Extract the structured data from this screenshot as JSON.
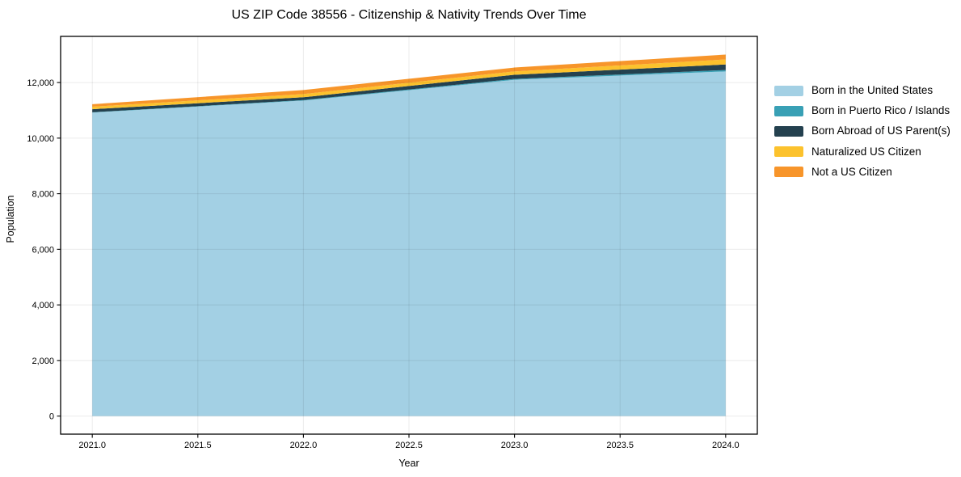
{
  "chart_data": {
    "type": "area",
    "stacked": true,
    "title": "US ZIP Code 38556 - Citizenship & Nativity Trends Over Time",
    "xlabel": "Year",
    "ylabel": "Population",
    "x": [
      2021,
      2022,
      2023,
      2024
    ],
    "series": [
      {
        "name": "Born in the United States",
        "color": "#a3d0e4",
        "values": [
          10920,
          11350,
          12100,
          12400
        ]
      },
      {
        "name": "Born in Puerto Rico / Islands",
        "color": "#39a0b5",
        "values": [
          10,
          20,
          30,
          50
        ]
      },
      {
        "name": "Born Abroad of US Parent(s)",
        "color": "#24414f",
        "values": [
          110,
          100,
          150,
          200
        ]
      },
      {
        "name": "Naturalized US Citizen",
        "color": "#fcc22d",
        "values": [
          90,
          115,
          120,
          180
        ]
      },
      {
        "name": "Not a US Citizen",
        "color": "#f7952a",
        "values": [
          90,
          145,
          140,
          175
        ]
      }
    ],
    "stack_totals": [
      11220,
      11730,
      12540,
      13005
    ],
    "x_ticks": [
      2021.0,
      2021.5,
      2022.0,
      2022.5,
      2023.0,
      2023.5,
      2024.0
    ],
    "x_tick_labels": [
      "2021.0",
      "2021.5",
      "2022.0",
      "2022.5",
      "2023.0",
      "2023.5",
      "2024.0"
    ],
    "y_ticks": [
      0,
      2000,
      4000,
      6000,
      8000,
      10000,
      12000
    ],
    "y_tick_labels": [
      "0",
      "2,000",
      "4,000",
      "6,000",
      "8,000",
      "10,000",
      "12,000"
    ],
    "xlim": [
      2020.85,
      2024.15
    ],
    "ylim": [
      -650,
      13660
    ],
    "grid": true,
    "legend_position": "right outside"
  },
  "colors": {
    "background": "#ffffff",
    "plot_frame": "#000000",
    "gridline": "rgba(0,0,0,0.08)",
    "text": "#000000"
  }
}
